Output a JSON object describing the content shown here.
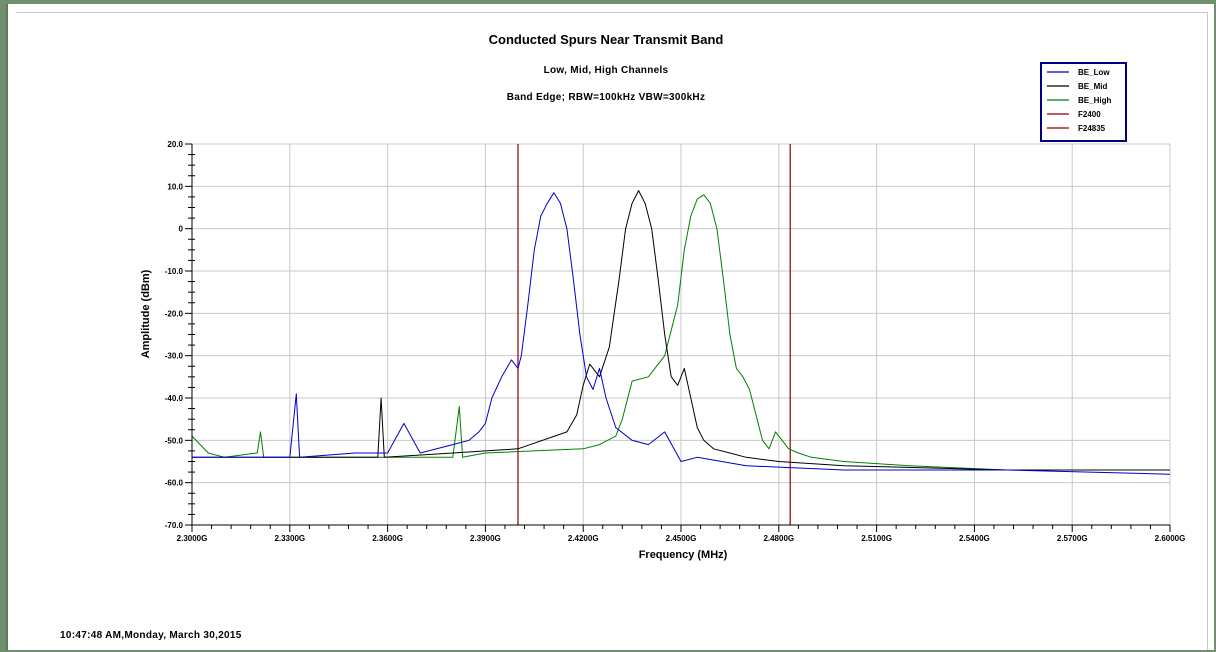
{
  "timestamp": "10:47:48 AM,Monday, March 30,2015",
  "chart_data": {
    "type": "line",
    "title": "Conducted Spurs Near Transmit Band",
    "subtitle": "Low, Mid, High Channels",
    "subtitle2": "Band Edge; RBW=100kHz VBW=300kHz",
    "xlabel": "Frequency (MHz)",
    "ylabel": "Amplitude (dBm)",
    "xlim": [
      2.3,
      2.6
    ],
    "ylim": [
      -70,
      20
    ],
    "grid": true,
    "legend_position": "top-right",
    "x_ticks": [
      2.3,
      2.33,
      2.36,
      2.39,
      2.42,
      2.45,
      2.48,
      2.51,
      2.54,
      2.57,
      2.6
    ],
    "x_tick_labels": [
      "2.3000G",
      "2.3300G",
      "2.3600G",
      "2.3900G",
      "2.4200G",
      "2.4500G",
      "2.4800G",
      "2.5100G",
      "2.5400G",
      "2.5700G",
      "2.6000G"
    ],
    "y_ticks": [
      20,
      10,
      0,
      -10,
      -20,
      -30,
      -40,
      -50,
      -60,
      -70
    ],
    "y_tick_labels": [
      "20.0",
      "10.0",
      "0",
      "-10.0",
      "-20.0",
      "-30.0",
      "-40.0",
      "-50.0",
      "-60.0",
      "-70.0"
    ],
    "series": [
      {
        "name": "BE_Low",
        "color": "#0000cc",
        "x": [
          2.3,
          2.32,
          2.33,
          2.332,
          2.333,
          2.35,
          2.36,
          2.365,
          2.37,
          2.38,
          2.385,
          2.388,
          2.39,
          2.392,
          2.395,
          2.398,
          2.4,
          2.401,
          2.403,
          2.405,
          2.407,
          2.409,
          2.411,
          2.413,
          2.415,
          2.417,
          2.419,
          2.421,
          2.423,
          2.425,
          2.427,
          2.43,
          2.435,
          2.44,
          2.445,
          2.45,
          2.455,
          2.47,
          2.5,
          2.55,
          2.6
        ],
        "y": [
          -54,
          -54,
          -54,
          -39,
          -54,
          -53,
          -53,
          -46,
          -53,
          -51,
          -50,
          -48,
          -46,
          -40,
          -35,
          -31,
          -33,
          -30,
          -18,
          -5,
          3,
          6,
          8.5,
          6,
          0,
          -12,
          -25,
          -35,
          -38,
          -33,
          -40,
          -47,
          -50,
          -51,
          -48,
          -55,
          -54,
          -56,
          -57,
          -57,
          -58
        ]
      },
      {
        "name": "BE_Mid",
        "color": "#000000",
        "x": [
          2.3,
          2.33,
          2.357,
          2.358,
          2.359,
          2.38,
          2.4,
          2.415,
          2.418,
          2.42,
          2.422,
          2.425,
          2.428,
          2.431,
          2.433,
          2.435,
          2.437,
          2.439,
          2.441,
          2.443,
          2.445,
          2.447,
          2.449,
          2.451,
          2.453,
          2.455,
          2.457,
          2.46,
          2.465,
          2.47,
          2.48,
          2.5,
          2.55,
          2.6
        ],
        "y": [
          -54,
          -54,
          -54,
          -40,
          -54,
          -53,
          -52,
          -48,
          -44,
          -37,
          -32,
          -35,
          -28,
          -12,
          0,
          6,
          9,
          6,
          0,
          -12,
          -25,
          -35,
          -37,
          -33,
          -40,
          -47,
          -50,
          -52,
          -53,
          -54,
          -55,
          -56,
          -57,
          -57
        ]
      },
      {
        "name": "BE_High",
        "color": "#008000",
        "x": [
          2.3,
          2.305,
          2.31,
          2.32,
          2.321,
          2.322,
          2.35,
          2.38,
          2.382,
          2.383,
          2.39,
          2.42,
          2.425,
          2.43,
          2.432,
          2.435,
          2.44,
          2.445,
          2.449,
          2.451,
          2.453,
          2.455,
          2.457,
          2.459,
          2.461,
          2.463,
          2.465,
          2.467,
          2.469,
          2.471,
          2.473,
          2.475,
          2.477,
          2.479,
          2.481,
          2.483,
          2.486,
          2.49,
          2.5,
          2.52,
          2.55,
          2.6
        ],
        "y": [
          -49,
          -53,
          -54,
          -53,
          -48,
          -54,
          -54,
          -54,
          -42,
          -54,
          -53,
          -52,
          -51,
          -49,
          -45,
          -36,
          -35,
          -30,
          -18,
          -5,
          3,
          7,
          8,
          6,
          0,
          -12,
          -25,
          -33,
          -35,
          -38,
          -44,
          -50,
          -52,
          -48,
          -50,
          -52,
          -53,
          -54,
          -55,
          -56,
          -57,
          -57
        ]
      },
      {
        "name": "F2400",
        "color": "#8b0000",
        "x": [
          2.4,
          2.4
        ],
        "y": [
          -70,
          20
        ]
      },
      {
        "name": "F24835",
        "color": "#8b0000",
        "x": [
          2.4835,
          2.4835
        ],
        "y": [
          -70,
          20
        ]
      }
    ]
  }
}
